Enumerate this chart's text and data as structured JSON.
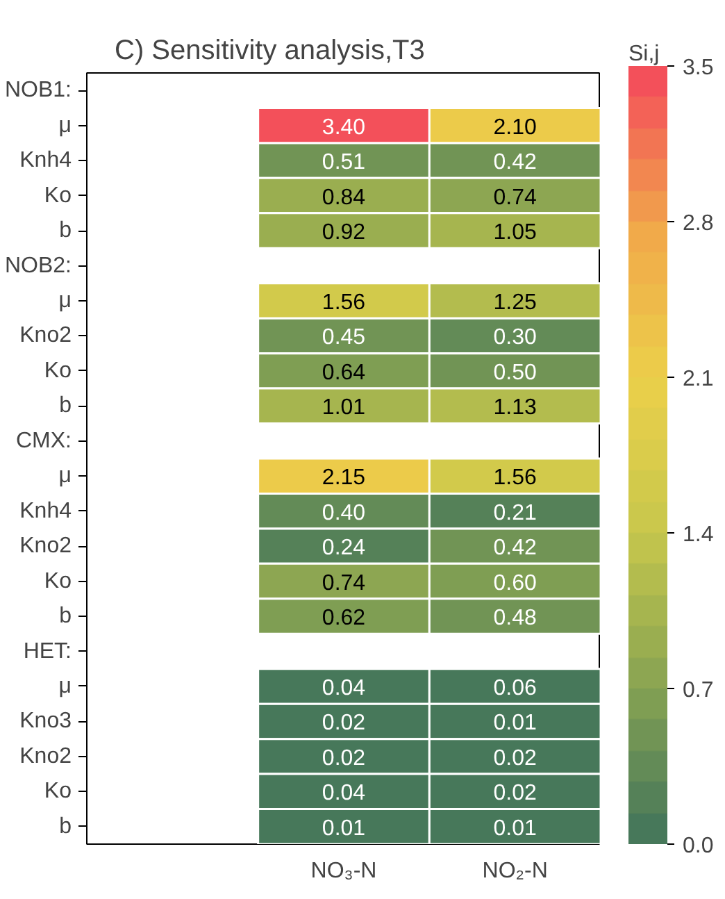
{
  "chart_data": {
    "type": "heatmap",
    "title": "C) Sensitivity analysis,T3",
    "clabel": "Si,j",
    "categories": [
      null,
      "NO₃-N",
      "NO₂-N"
    ],
    "y_categories": [
      "NOB1:",
      "μ",
      "Knh4",
      "Ko",
      "b",
      "NOB2:",
      "μ",
      "Kno2",
      "Ko",
      "b",
      "CMX:",
      "μ",
      "Knh4",
      "Kno2",
      "Ko",
      "b",
      "HET:",
      "μ",
      "Kno3",
      "Kno2",
      "Ko",
      "b"
    ],
    "cells": [
      [
        null,
        null,
        null
      ],
      [
        null,
        3.4,
        2.1
      ],
      [
        null,
        0.51,
        0.42
      ],
      [
        null,
        0.84,
        0.74
      ],
      [
        null,
        0.92,
        1.05
      ],
      [
        null,
        null,
        null
      ],
      [
        null,
        1.56,
        1.25
      ],
      [
        null,
        0.45,
        0.3
      ],
      [
        null,
        0.64,
        0.5
      ],
      [
        null,
        1.01,
        1.13
      ],
      [
        null,
        null,
        null
      ],
      [
        null,
        2.15,
        1.56
      ],
      [
        null,
        0.4,
        0.21
      ],
      [
        null,
        0.24,
        0.42
      ],
      [
        null,
        0.74,
        0.6
      ],
      [
        null,
        0.62,
        0.48
      ],
      [
        null,
        null,
        null
      ],
      [
        null,
        0.04,
        0.06
      ],
      [
        null,
        0.02,
        0.01
      ],
      [
        null,
        0.02,
        0.02
      ],
      [
        null,
        0.04,
        0.02
      ],
      [
        null,
        0.01,
        0.01
      ]
    ],
    "cell_labels": [
      [
        null,
        null,
        null
      ],
      [
        null,
        "3.40",
        "2.10"
      ],
      [
        null,
        "0.51",
        "0.42"
      ],
      [
        null,
        "0.84",
        "0.74"
      ],
      [
        null,
        "0.92",
        "1.05"
      ],
      [
        null,
        null,
        null
      ],
      [
        null,
        "1.56",
        "1.25"
      ],
      [
        null,
        "0.45",
        "0.30"
      ],
      [
        null,
        "0.64",
        "0.50"
      ],
      [
        null,
        "1.01",
        "1.13"
      ],
      [
        null,
        null,
        null
      ],
      [
        null,
        "2.15",
        "1.56"
      ],
      [
        null,
        "0.40",
        "0.21"
      ],
      [
        null,
        "0.24",
        "0.42"
      ],
      [
        null,
        "0.74",
        "0.60"
      ],
      [
        null,
        "0.62",
        "0.48"
      ],
      [
        null,
        null,
        null
      ],
      [
        null,
        "0.04",
        "0.06"
      ],
      [
        null,
        "0.02",
        "0.01"
      ],
      [
        null,
        "0.02",
        "0.02"
      ],
      [
        null,
        "0.04",
        "0.02"
      ],
      [
        null,
        "0.01",
        "0.01"
      ]
    ],
    "clim": [
      0,
      3.5
    ],
    "cticks": [
      {
        "value": 0,
        "label": "0.0"
      },
      {
        "value": 0.7,
        "label": "0.7"
      },
      {
        "value": 1.4,
        "label": "1.4"
      },
      {
        "value": 2.1,
        "label": "2.1"
      },
      {
        "value": 2.8,
        "label": "2.8"
      },
      {
        "value": 3.5,
        "label": "3.5"
      }
    ],
    "grid": false
  }
}
